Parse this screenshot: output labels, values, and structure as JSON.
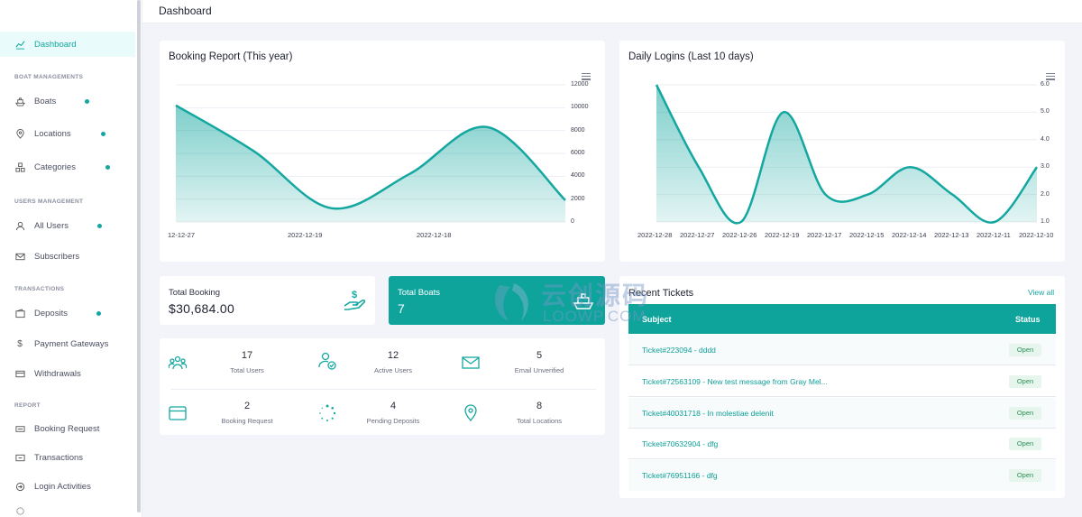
{
  "header": {
    "title": "Dashboard"
  },
  "sidebar": {
    "sections": [
      {
        "heading": "BOAT MANAGEMENTS"
      },
      {
        "heading": "USERS MANAGEMENT"
      },
      {
        "heading": "TRANSACTIONS"
      },
      {
        "heading": "REPORT"
      }
    ],
    "items": [
      {
        "label": "Dashboard",
        "icon": "dashboard-icon",
        "active": true
      },
      {
        "label": "Boats",
        "icon": "boat-icon",
        "dot": true
      },
      {
        "label": "Locations",
        "icon": "map-pin-icon",
        "dot": true
      },
      {
        "label": "Categories",
        "icon": "categories-icon",
        "dot": true
      },
      {
        "label": "All Users",
        "icon": "user-icon",
        "dot": true
      },
      {
        "label": "Subscribers",
        "icon": "mail-icon"
      },
      {
        "label": "Deposits",
        "icon": "wallet-icon",
        "dot": true
      },
      {
        "label": "Payment Gateways",
        "icon": "dollar-icon"
      },
      {
        "label": "Withdrawals",
        "icon": "withdraw-icon"
      },
      {
        "label": "Booking Request",
        "icon": "ticket-icon"
      },
      {
        "label": "Transactions",
        "icon": "transactions-icon"
      },
      {
        "label": "Login Activities",
        "icon": "login-icon"
      }
    ]
  },
  "booking_report": {
    "title": "Booking Report (This year)",
    "y_ticks": [
      "12000",
      "10000",
      "8000",
      "6000",
      "4000",
      "2000",
      "0"
    ],
    "x_labels": [
      "12-12-27",
      "2022-12-19",
      "2022-12-18"
    ]
  },
  "daily_logins": {
    "title": "Daily Logins (Last 10 days)",
    "y_ticks": [
      "6.0",
      "5.0",
      "4.0",
      "3.0",
      "2.0",
      "1.0"
    ],
    "x_labels": [
      "2022-12-28",
      "2022-12-27",
      "2022-12-26",
      "2022-12-19",
      "2022-12-17",
      "2022-12-15",
      "2022-12-14",
      "2022-12-13",
      "2022-12-11",
      "2022-12-10"
    ]
  },
  "chart_data": [
    {
      "type": "area",
      "title": "Booking Report (This year)",
      "categories": [
        "12-12-27",
        "",
        "2022-12-19",
        "",
        "2022-12-18",
        ""
      ],
      "series": [
        {
          "values": [
            10200,
            6200,
            1200,
            4200,
            8300,
            1900
          ]
        }
      ],
      "ylim": [
        0,
        12000
      ]
    },
    {
      "type": "area",
      "title": "Daily Logins (Last 10 days)",
      "categories": [
        "2022-12-28",
        "2022-12-27",
        "2022-12-26",
        "2022-12-19",
        "2022-12-17",
        "2022-12-15",
        "2022-12-14",
        "2022-12-13",
        "2022-12-11",
        "2022-12-10"
      ],
      "series": [
        {
          "values": [
            6,
            3,
            1,
            5,
            2,
            2,
            3,
            2,
            1,
            3
          ]
        }
      ],
      "ylim": [
        1,
        6
      ]
    }
  ],
  "stats": {
    "total_booking": {
      "label": "Total Booking",
      "value": "$30,684.00",
      "icon": "hand-dollar-icon"
    },
    "total_boats": {
      "label": "Total Boats",
      "value": "7",
      "icon": "ship-icon"
    }
  },
  "mini_stats": [
    {
      "num": "17",
      "label": "Total Users",
      "icon": "users-icon"
    },
    {
      "num": "12",
      "label": "Active Users",
      "icon": "user-check-icon"
    },
    {
      "num": "5",
      "label": "Email Unverified",
      "icon": "envelope-icon"
    },
    {
      "num": "2",
      "label": "Booking Request",
      "icon": "card-icon"
    },
    {
      "num": "4",
      "label": "Pending Deposits",
      "icon": "spinner-icon"
    },
    {
      "num": "8",
      "label": "Total Locations",
      "icon": "location-icon"
    }
  ],
  "tickets": {
    "title": "Recent Tickets",
    "view_all": "View all",
    "col_subject": "Subject",
    "col_status": "Status",
    "rows": [
      {
        "subject": "Ticket#223094 - dddd",
        "status": "Open"
      },
      {
        "subject": "Ticket#72563109 - New test message from Gray Mel...",
        "status": "Open"
      },
      {
        "subject": "Ticket#40031718 - In molestiae delenit",
        "status": "Open"
      },
      {
        "subject": "Ticket#70632904 - dfg",
        "status": "Open"
      },
      {
        "subject": "Ticket#76951166 - dfg",
        "status": "Open"
      }
    ]
  },
  "watermark": {
    "cn": "云创源码",
    "en": "LOOWP.COM"
  },
  "colors": {
    "accent": "#14a7a0",
    "teal_dark": "#0ea49c"
  }
}
